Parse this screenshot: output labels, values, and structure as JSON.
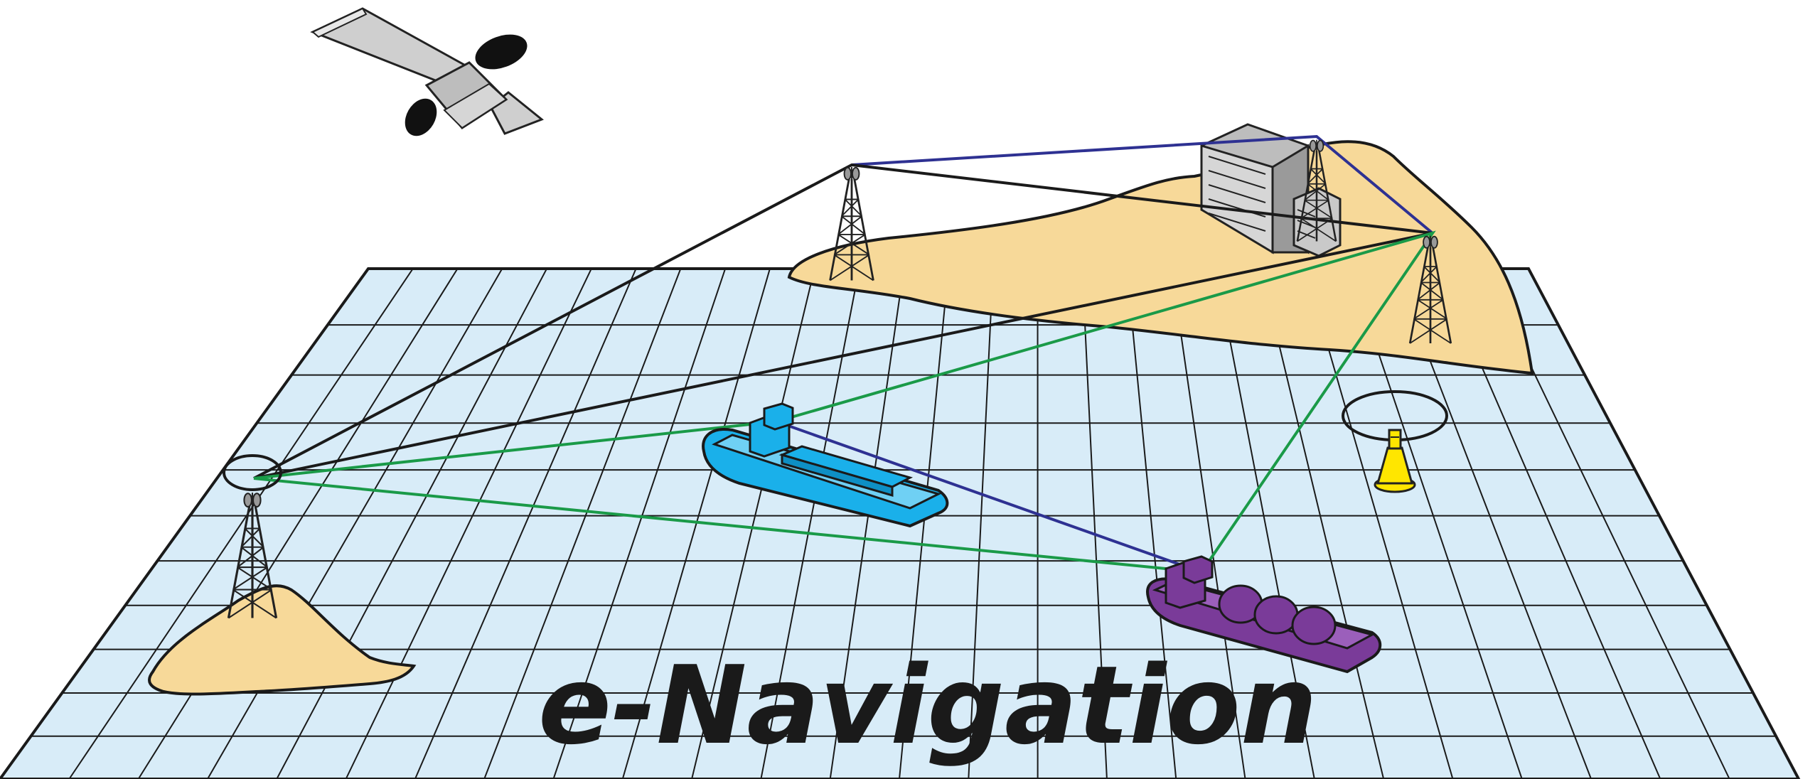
{
  "title": "e-Navigation",
  "colors": {
    "water": "#d8ecf8",
    "grid_line": "#1a1a1a",
    "land": "#f7d999",
    "link_black": "#1a1a1a",
    "link_blue": "#2e3192",
    "link_green": "#1a9a48",
    "ship_blue": "#1ab0ea",
    "ship_purple": "#7a3b99",
    "buoy": "#ffe600",
    "satellite": "#cfcfcf",
    "building": "#bdbdbd"
  },
  "icons": {
    "satellite": "satellite-icon",
    "tower": "radio-tower-icon",
    "building": "shore-station-building-icon",
    "buoy": "buoy-icon",
    "ship": "ship-icon"
  }
}
